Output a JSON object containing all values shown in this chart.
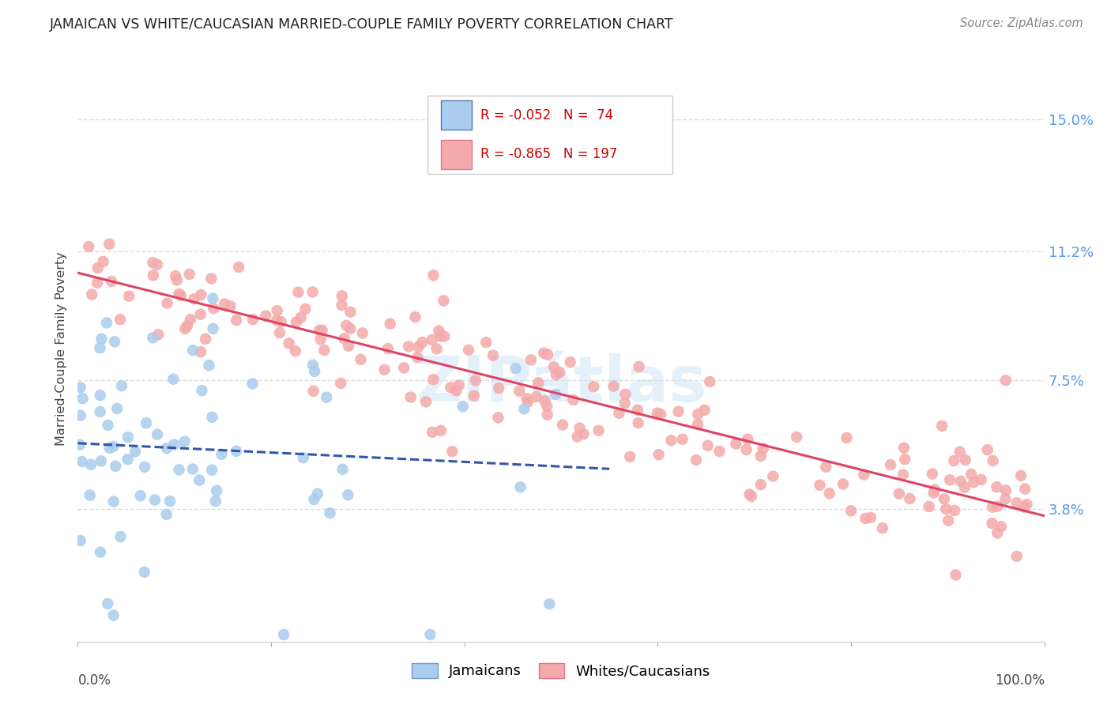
{
  "title": "JAMAICAN VS WHITE/CAUCASIAN MARRIED-COUPLE FAMILY POVERTY CORRELATION CHART",
  "source": "Source: ZipAtlas.com",
  "ylabel": "Married-Couple Family Poverty",
  "ytick_values": [
    3.8,
    7.5,
    11.2,
    15.0
  ],
  "legend_label_jamaicans": "Jamaicans",
  "legend_label_whites": "Whites/Caucasians",
  "watermark": "ZIPátlas",
  "background_color": "#ffffff",
  "grid_color": "#dddddd",
  "title_color": "#222222",
  "axis_label_color": "#444444",
  "right_tick_color": "#5599ee",
  "jamaican_color": "#aaccee",
  "white_color": "#f4aaaa",
  "jamaican_line_color": "#3355aa",
  "white_line_color": "#dd4466",
  "xmin": 0,
  "xmax": 100,
  "ymin": 0,
  "ymax": 16.8,
  "legend_R1": "R = -0.052",
  "legend_N1": "N =  74",
  "legend_R2": "R = -0.865",
  "legend_N2": "N = 197",
  "legend_color_R": "#cc0000"
}
